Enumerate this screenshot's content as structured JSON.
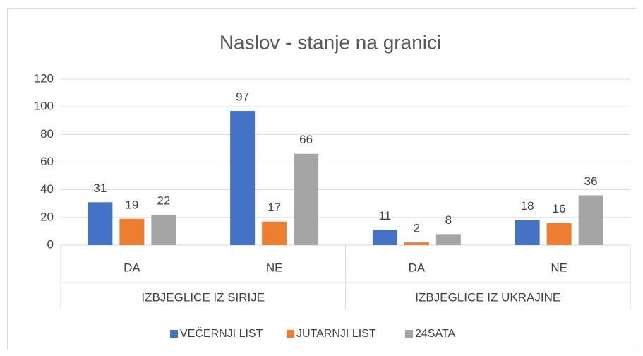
{
  "chart_data": {
    "type": "bar",
    "title": "Naslov - stanje na granici",
    "groups": [
      {
        "name": "IZBJEGLICE IZ SIRIJE",
        "categories": [
          "DA",
          "NE"
        ]
      },
      {
        "name": "IZBJEGLICE IZ UKRAJINE",
        "categories": [
          "DA",
          "NE"
        ]
      }
    ],
    "series": [
      {
        "name": "VEČERNJI LIST",
        "color": "#4472c4",
        "values": [
          31,
          97,
          11,
          18
        ]
      },
      {
        "name": "JUTARNJI LIST",
        "color": "#ed7d31",
        "values": [
          19,
          17,
          2,
          16
        ]
      },
      {
        "name": "24SATA",
        "color": "#a5a5a5",
        "values": [
          22,
          66,
          8,
          36
        ]
      }
    ],
    "ylim": [
      0,
      120
    ],
    "yticks": [
      0,
      20,
      40,
      60,
      80,
      100,
      120
    ],
    "grid": true,
    "legend": "bottom"
  }
}
